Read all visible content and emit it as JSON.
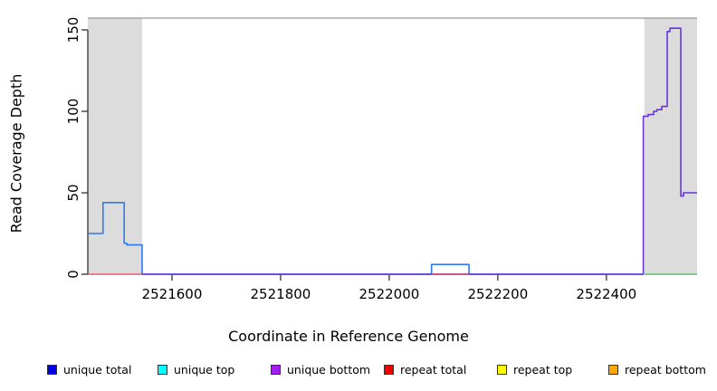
{
  "figure": {
    "background": "#ffffff",
    "plot_background": "#ffffff",
    "shaded_region_color": "#dcdcdc",
    "top_border_color": "#999999",
    "axis_color": "#333333"
  },
  "x_axis": {
    "label": "Coordinate in Reference Genome",
    "ticks": [
      2521600,
      2521800,
      2522000,
      2522200,
      2522400
    ]
  },
  "y_axis": {
    "label": "Read Coverage Depth",
    "ticks": [
      0,
      50,
      100,
      150
    ]
  },
  "legend": [
    {
      "label": "unique total",
      "color": "#0000ee"
    },
    {
      "label": "unique top",
      "color": "#00ffff"
    },
    {
      "label": "unique bottom",
      "color": "#a020f0"
    },
    {
      "label": "repeat total",
      "color": "#ee0000"
    },
    {
      "label": "repeat top",
      "color": "#ffff00"
    },
    {
      "label": "repeat bottom",
      "color": "#ffa500"
    }
  ],
  "chart_data": {
    "type": "line",
    "title": "",
    "xlabel": "Coordinate in Reference Genome",
    "ylabel": "Read Coverage Depth",
    "xlim": [
      2521445,
      2522567
    ],
    "ylim": [
      0,
      157
    ],
    "x_ticks": [
      2521600,
      2521800,
      2522000,
      2522200,
      2522400
    ],
    "y_ticks": [
      0,
      50,
      100,
      150
    ],
    "grid": false,
    "legend_position": "bottom",
    "shaded_regions": [
      {
        "x0": 2521445,
        "x1": 2521545,
        "color": "#dcdcdc"
      },
      {
        "x0": 2522470,
        "x1": 2522567,
        "color": "#dcdcdc"
      }
    ],
    "series": [
      {
        "name": "unique total",
        "color": "#2b7bf3",
        "width": 1.6,
        "segments": [
          {
            "points": [
              [
                2521445,
                25
              ],
              [
                2521473,
                44
              ],
              [
                2521512,
                19
              ],
              [
                2521517,
                18
              ],
              [
                2521545,
                0
              ],
              [
                2522078,
                6
              ],
              [
                2522147,
                0
              ]
            ],
            "x_end": 2522468
          }
        ]
      },
      {
        "name": "unique bottom",
        "color": "#6633e0",
        "width": 1.6,
        "segments": [
          {
            "points": [
              [
                2521545,
                0
              ],
              [
                2522468,
                97
              ],
              [
                2522477,
                98
              ],
              [
                2522487,
                100
              ],
              [
                2522493,
                101
              ],
              [
                2522502,
                103
              ],
              [
                2522512,
                149
              ],
              [
                2522517,
                151
              ],
              [
                2522537,
                48
              ],
              [
                2522542,
                50
              ]
            ],
            "x_end": 2522567
          }
        ]
      },
      {
        "name": "repeat total",
        "color": "#e0425f",
        "width": 1.3,
        "segments": [
          {
            "points": [
              [
                2521445,
                0
              ]
            ],
            "x_end": 2521545
          },
          {
            "points": [
              [
                2522078,
                0
              ]
            ],
            "x_end": 2522147
          }
        ]
      },
      {
        "name": "unlabeled green baseline",
        "color": "#45b854",
        "width": 1.3,
        "segments": [
          {
            "points": [
              [
                2522470,
                0
              ]
            ],
            "x_end": 2522567
          }
        ]
      }
    ]
  }
}
